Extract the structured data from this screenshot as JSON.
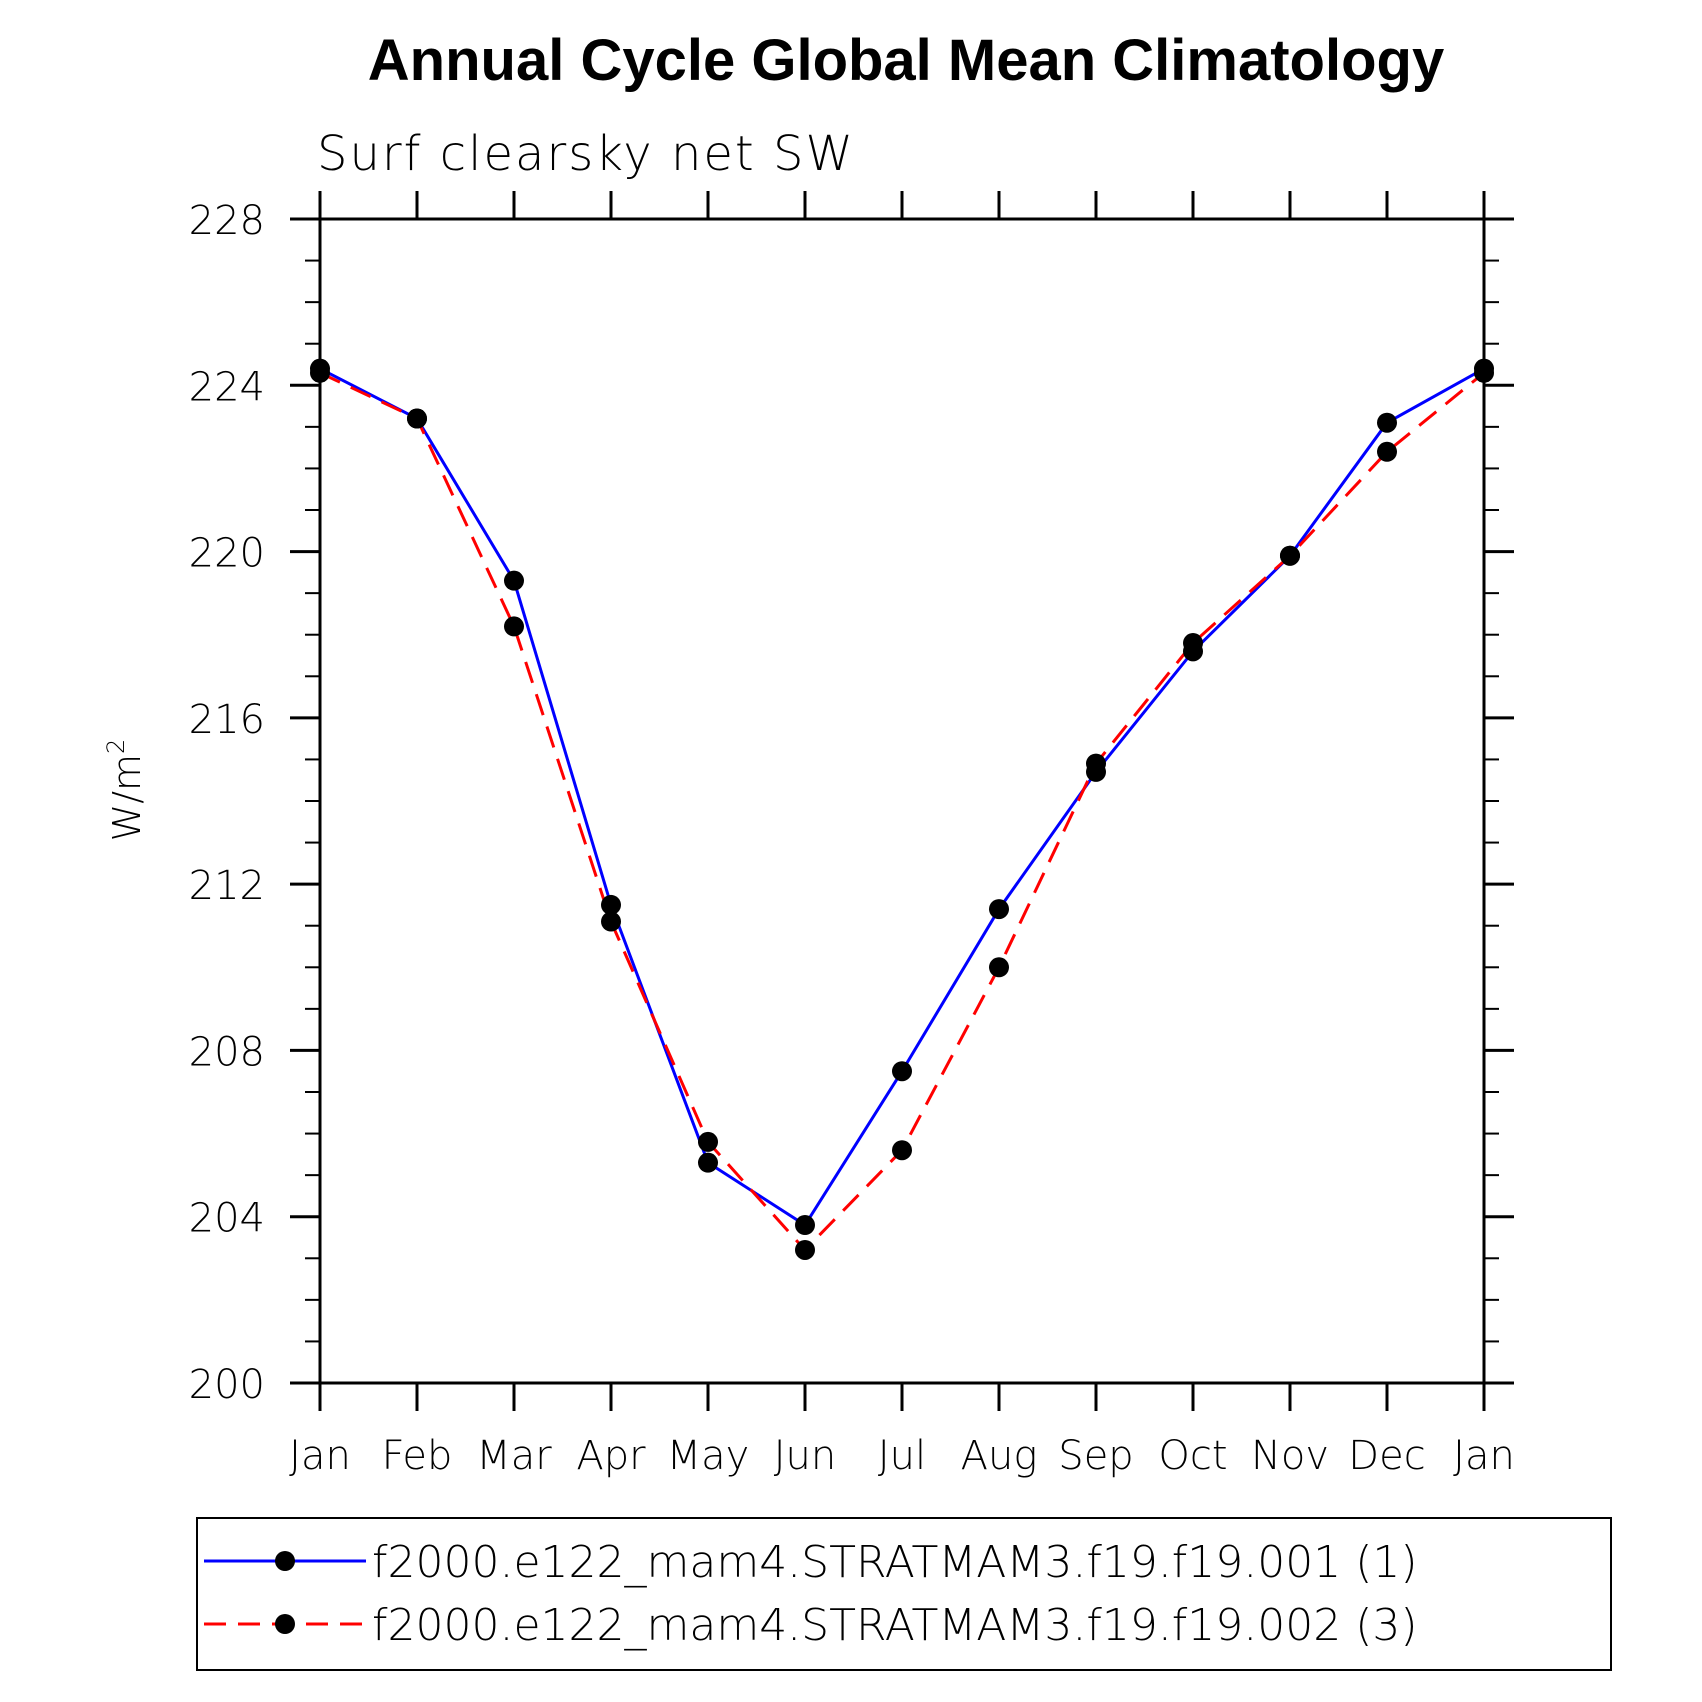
{
  "chart_data": {
    "type": "line",
    "title": "Annual Cycle Global Mean Climatology",
    "subtitle": "Surf clearsky net SW",
    "ylabel": "W/m",
    "ylabel_sup": "2",
    "xlabel": "",
    "categories": [
      "Jan",
      "Feb",
      "Mar",
      "Apr",
      "May",
      "Jun",
      "Jul",
      "Aug",
      "Sep",
      "Oct",
      "Nov",
      "Dec",
      "Jan"
    ],
    "ylim": [
      200,
      228
    ],
    "yticks": [
      200,
      204,
      208,
      212,
      216,
      220,
      224,
      228
    ],
    "ytick_labels": [
      "200",
      "204",
      "208",
      "212",
      "216",
      "220",
      "224",
      "228"
    ],
    "series": [
      {
        "name": "f2000.e122_mam4.STRATMAM3.f19.f19.001 (1)",
        "color": "#0000ff",
        "dash": "solid",
        "values": [
          224.4,
          223.2,
          219.3,
          211.5,
          205.3,
          203.8,
          207.5,
          211.4,
          214.7,
          217.6,
          219.9,
          223.1,
          224.4
        ]
      },
      {
        "name": "f2000.e122_mam4.STRATMAM3.f19.f19.002 (3)",
        "color": "#ff0000",
        "dash": "dashed",
        "values": [
          224.3,
          223.2,
          218.2,
          211.1,
          205.8,
          203.2,
          205.6,
          210.0,
          214.9,
          217.8,
          219.9,
          222.4,
          224.3
        ]
      }
    ],
    "grid": false,
    "legend_position": "bottom"
  }
}
